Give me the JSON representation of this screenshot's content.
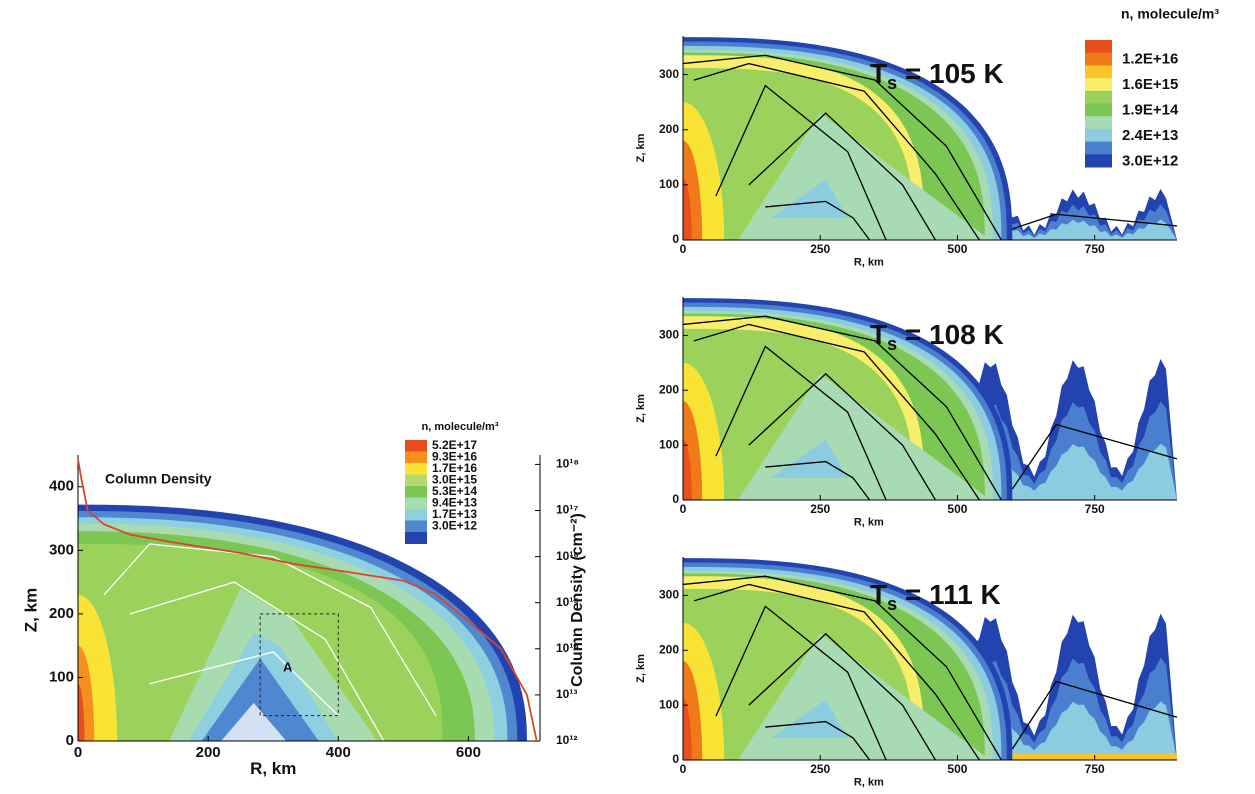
{
  "chart_data": [
    {
      "type": "contour",
      "xlabel": "R, km",
      "ylabel": "Z, km",
      "y2label": "Column Density (cm⁻²)",
      "xlim": [
        0,
        710
      ],
      "ylim": [
        0,
        450
      ],
      "xticks": [
        0,
        200,
        400,
        600
      ],
      "yticks": [
        0,
        100,
        200,
        300,
        400
      ],
      "y2lim": [
        1000000000000.0,
        1.6e+18
      ],
      "y2log": true,
      "y2ticks": [
        {
          "value": 1000000000000.0,
          "label": "10¹²"
        },
        {
          "value": 10000000000000.0,
          "label": "10¹³"
        },
        {
          "value": 100000000000000.0,
          "label": "10¹⁴"
        },
        {
          "value": 1000000000000000.0,
          "label": "10¹⁵"
        },
        {
          "value": 1e+16,
          "label": "10¹⁶"
        },
        {
          "value": 1e+17,
          "label": "10¹⁷"
        },
        {
          "value": 1e+18,
          "label": "10¹⁸"
        }
      ],
      "series": [
        {
          "color": "#d9452b",
          "axis": "y2",
          "x": [
            0,
            5,
            15,
            40,
            80,
            150,
            250,
            330,
            400,
            500,
            550,
            600,
            650,
            690,
            705
          ],
          "values": [
            1.3e+18,
            5e+17,
            1e+17,
            5e+16,
            3e+16,
            2e+16,
            1.2e+16,
            7000000000000000.0,
            5000000000000000.0,
            3000000000000000.0,
            1500000000000000.0,
            400000000000000.0,
            100000000000000.0,
            10000000000000.0,
            1000000000000.0
          ]
        }
      ],
      "annotations": [
        {
          "text": "Column Density"
        },
        {
          "text": "A"
        }
      ],
      "legend": {
        "title": "n, molecule/m³",
        "colors": [
          "#e94f1c",
          "#f5901f",
          "#f9e335",
          "#b5d96c",
          "#7cc653",
          "#a9dbb0",
          "#8fd0e0",
          "#4f88d0",
          "#2344b0"
        ],
        "labels": [
          {
            "value": 5.2e+17,
            "label": "5.2E+17"
          },
          {
            "value": 9.3e+16,
            "label": "9.3E+16"
          },
          {
            "value": 1.7e+16,
            "label": "1.7E+16"
          },
          {
            "value": 3000000000000000.0,
            "label": "3.0E+15"
          },
          {
            "value": 530000000000000.0,
            "label": "5.3E+14"
          },
          {
            "value": 94000000000000.0,
            "label": "9.4E+13"
          },
          {
            "value": 17000000000000.0,
            "label": "1.7E+13"
          },
          {
            "value": 3000000000000.0,
            "label": "3.0E+12"
          }
        ]
      }
    },
    {
      "type": "contour",
      "title": {
        "main": "T",
        "sub": "s",
        "rest": " = 105 K"
      },
      "xlabel": "R, km",
      "ylabel": "Z, km",
      "xlim": [
        0,
        900
      ],
      "ylim": [
        0,
        370
      ],
      "xticks": [
        0,
        250,
        500,
        750
      ],
      "yticks": [
        0,
        100,
        200,
        300
      ],
      "legend": {
        "title": "n, molecule/m³",
        "colors": [
          "#e94f1c",
          "#f07a1a",
          "#f9c52a",
          "#f9ee6a",
          "#9bd25c",
          "#7cc653",
          "#a8dbb4",
          "#8ccce0",
          "#4a7fd0",
          "#2344b0"
        ],
        "labels": [
          {
            "value": 1.2e+16,
            "label": "1.2E+16"
          },
          {
            "value": 1600000000000000.0,
            "label": "1.6E+15"
          },
          {
            "value": 190000000000000.0,
            "label": "1.9E+14"
          },
          {
            "value": 24000000000000.0,
            "label": "2.4E+13"
          },
          {
            "value": 3000000000000.0,
            "label": "3.0E+12"
          }
        ]
      }
    },
    {
      "type": "contour",
      "title": {
        "main": "T",
        "sub": "s",
        "rest": " = 108 K"
      },
      "xlabel": "R, km",
      "ylabel": "Z, km",
      "xlim": [
        0,
        900
      ],
      "ylim": [
        0,
        370
      ],
      "xticks": [
        0,
        250,
        500,
        750
      ],
      "yticks": [
        0,
        100,
        200,
        300
      ]
    },
    {
      "type": "contour",
      "title": {
        "main": "T",
        "sub": "s",
        "rest": " = 111 K"
      },
      "xlabel": "R, km",
      "ylabel": "Z, km",
      "xlim": [
        0,
        900
      ],
      "ylim": [
        0,
        370
      ],
      "xticks": [
        0,
        250,
        500,
        750
      ],
      "yticks": [
        0,
        100,
        200,
        300
      ]
    }
  ]
}
